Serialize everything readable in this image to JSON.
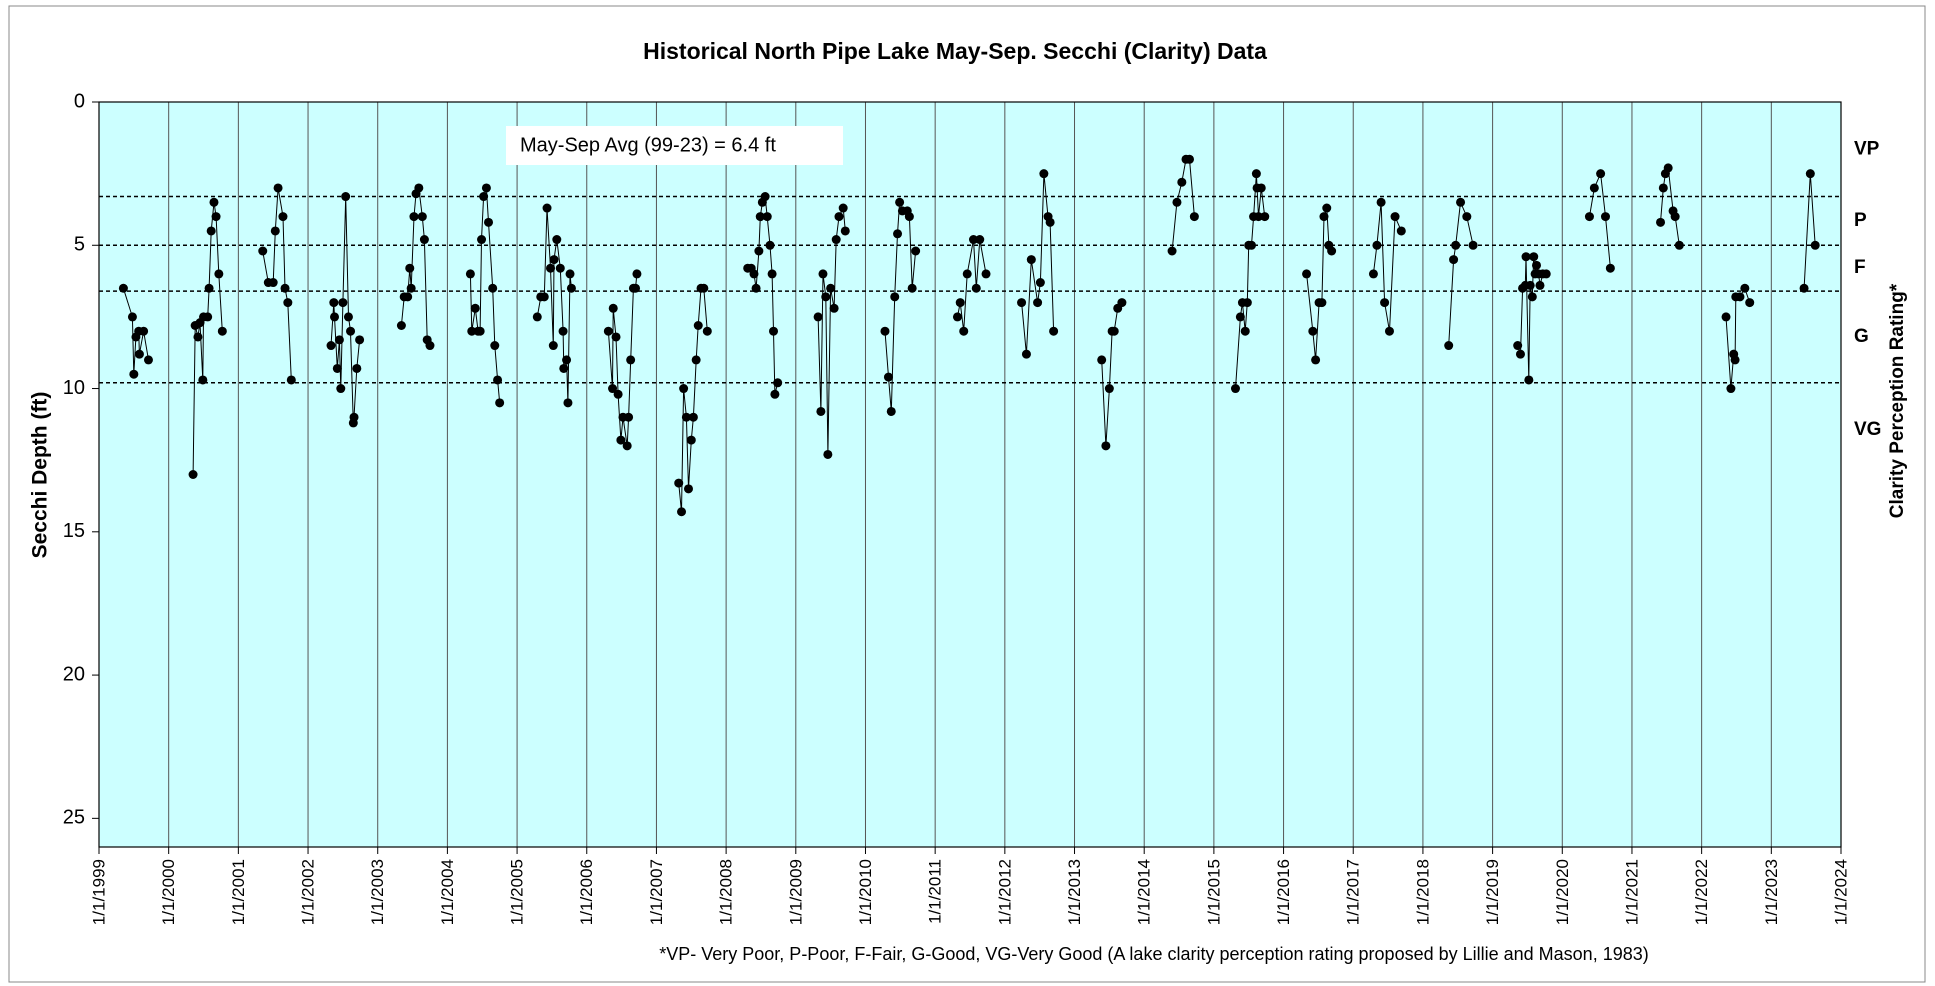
{
  "chart_data": {
    "type": "line",
    "title": "Historical North Pipe Lake May-Sep. Secchi (Clarity) Data",
    "y_label": "Secchi Depth (ft)",
    "y2_label": "Clarity  Perception  Rating*",
    "annotation": "May-Sep Avg (99-23) = 6.4 ft",
    "footnote": "*VP- Very Poor, P-Poor, F-Fair, G-Good, VG-Very Good (A lake clarity perception rating proposed by Lillie and Mason, 1983)",
    "ratings": [
      "VP",
      "P",
      "F",
      "G",
      "VG"
    ],
    "thresholds": [
      3.3,
      5,
      6.6,
      9.8
    ],
    "xlim": [
      1999,
      2024
    ],
    "xticks": [
      {
        "value": 1999,
        "label": "1/1/1999"
      },
      {
        "value": 2000,
        "label": "1/1/2000"
      },
      {
        "value": 2001,
        "label": "1/1/2001"
      },
      {
        "value": 2002,
        "label": "1/1/2002"
      },
      {
        "value": 2003,
        "label": "1/1/2003"
      },
      {
        "value": 2004,
        "label": "1/1/2004"
      },
      {
        "value": 2005,
        "label": "1/1/2005"
      },
      {
        "value": 2006,
        "label": "1/1/2006"
      },
      {
        "value": 2007,
        "label": "1/1/2007"
      },
      {
        "value": 2008,
        "label": "1/1/2008"
      },
      {
        "value": 2009,
        "label": "1/1/2009"
      },
      {
        "value": 2010,
        "label": "1/1/2010"
      },
      {
        "value": 2011,
        "label": "1/1/2011"
      },
      {
        "value": 2012,
        "label": "1/1/2012"
      },
      {
        "value": 2013,
        "label": "1/1/2013"
      },
      {
        "value": 2014,
        "label": "1/1/2014"
      },
      {
        "value": 2015,
        "label": "1/1/2015"
      },
      {
        "value": 2016,
        "label": "1/1/2016"
      },
      {
        "value": 2017,
        "label": "1/1/2017"
      },
      {
        "value": 2018,
        "label": "1/1/2018"
      },
      {
        "value": 2019,
        "label": "1/1/2019"
      },
      {
        "value": 2020,
        "label": "1/1/2020"
      },
      {
        "value": 2021,
        "label": "1/1/2021"
      },
      {
        "value": 2022,
        "label": "1/1/2022"
      },
      {
        "value": 2023,
        "label": "1/1/2023"
      },
      {
        "value": 2024,
        "label": "1/1/2024"
      }
    ],
    "ylim": [
      0,
      26
    ],
    "yticks": [
      0,
      5,
      10,
      15,
      20,
      25
    ],
    "y_inverted": true,
    "grid": true,
    "background": "#ccffff",
    "series": [
      {
        "color": "#000000",
        "x": [
          1999.35,
          1999.48,
          1999.5,
          1999.53,
          1999.57,
          1999.58,
          1999.64,
          1999.71,
          null,
          2000.35,
          2000.38,
          2000.42,
          2000.45,
          2000.49,
          2000.5,
          2000.56,
          2000.58,
          2000.61,
          2000.65,
          2000.68,
          2000.72,
          2000.77,
          null,
          2001.35,
          2001.43,
          2001.5,
          2001.53,
          2001.57,
          2001.64,
          2001.67,
          2001.71,
          2001.76,
          null,
          2002.33,
          2002.37,
          2002.38,
          2002.42,
          2002.45,
          2002.47,
          2002.5,
          2002.54,
          2002.58,
          2002.61,
          2002.65,
          2002.66,
          2002.7,
          2002.74,
          null,
          2003.34,
          2003.38,
          2003.43,
          2003.46,
          2003.48,
          2003.52,
          2003.55,
          2003.59,
          2003.64,
          2003.67,
          2003.71,
          2003.75,
          null,
          2004.33,
          2004.35,
          2004.4,
          2004.44,
          2004.47,
          2004.49,
          2004.52,
          2004.56,
          2004.59,
          2004.65,
          2004.68,
          2004.72,
          2004.75,
          null,
          2005.29,
          2005.34,
          2005.39,
          2005.43,
          2005.48,
          2005.52,
          2005.53,
          2005.57,
          2005.62,
          2005.66,
          2005.67,
          2005.71,
          2005.73,
          2005.76,
          2005.78,
          null,
          2006.31,
          2006.37,
          2006.38,
          2006.42,
          2006.45,
          2006.49,
          2006.52,
          2006.58,
          2006.6,
          2006.63,
          2006.67,
          2006.7,
          2006.72,
          null,
          2007.32,
          2007.36,
          2007.39,
          2007.43,
          2007.46,
          2007.5,
          2007.53,
          2007.57,
          2007.6,
          2007.64,
          2007.68,
          2007.73,
          null,
          2008.31,
          2008.36,
          2008.4,
          2008.43,
          2008.47,
          2008.49,
          2008.52,
          2008.56,
          2008.59,
          2008.63,
          2008.66,
          2008.68,
          2008.7,
          2008.74,
          null,
          2009.32,
          2009.36,
          2009.39,
          2009.43,
          2009.46,
          2009.5,
          2009.55,
          2009.58,
          2009.62,
          2009.68,
          2009.71,
          null,
          2010.28,
          2010.33,
          2010.37,
          2010.42,
          2010.46,
          2010.49,
          2010.53,
          2010.6,
          2010.63,
          2010.67,
          2010.72,
          null,
          2011.32,
          2011.36,
          2011.41,
          2011.46,
          2011.55,
          2011.59,
          2011.64,
          2011.73,
          null,
          2012.24,
          2012.31,
          2012.38,
          2012.47,
          2012.51,
          2012.56,
          2012.62,
          2012.65,
          2012.7,
          null,
          2013.39,
          2013.45,
          2013.5,
          2013.54,
          2013.57,
          2013.62,
          2013.68,
          null,
          2014.4,
          2014.47,
          2014.54,
          2014.6,
          2014.65,
          2014.72,
          null,
          2015.31,
          2015.38,
          2015.41,
          2015.45,
          2015.48,
          2015.5,
          2015.54,
          2015.57,
          2015.61,
          2015.62,
          2015.64,
          2015.68,
          2015.73,
          null,
          2016.33,
          2016.42,
          2016.46,
          2016.51,
          2016.55,
          2016.58,
          2016.62,
          2016.65,
          2016.69,
          null,
          2017.29,
          2017.34,
          2017.4,
          2017.45,
          2017.52,
          2017.6,
          2017.69,
          null,
          2018.37,
          2018.44,
          2018.47,
          2018.54,
          2018.63,
          2018.72,
          null,
          2019.36,
          2019.4,
          2019.43,
          2019.47,
          2019.48,
          2019.52,
          2019.54,
          2019.57,
          2019.59,
          2019.61,
          2019.63,
          2019.66,
          2019.68,
          2019.72,
          2019.77,
          null,
          2020.39,
          2020.46,
          2020.55,
          2020.62,
          2020.69,
          null,
          2021.41,
          2021.45,
          2021.48,
          2021.52,
          2021.59,
          2021.62,
          2021.68,
          null,
          2022.35,
          2022.42,
          2022.46,
          2022.48,
          2022.49,
          2022.55,
          2022.62,
          2022.69,
          null,
          2023.47,
          2023.56,
          2023.63
        ],
        "values": [
          6.5,
          7.5,
          9.5,
          8.2,
          8.0,
          8.8,
          8.0,
          9.0,
          null,
          13.0,
          7.8,
          8.2,
          7.7,
          9.7,
          7.5,
          7.5,
          6.5,
          4.5,
          3.5,
          4.0,
          6.0,
          8.0,
          null,
          5.2,
          6.3,
          6.3,
          4.5,
          3.0,
          4.0,
          6.5,
          7.0,
          9.7,
          null,
          8.5,
          7.0,
          7.5,
          9.3,
          8.3,
          10.0,
          7.0,
          3.3,
          7.5,
          8.0,
          11.2,
          11.0,
          9.3,
          8.3,
          null,
          7.8,
          6.8,
          6.8,
          5.8,
          6.5,
          4.0,
          3.2,
          3.0,
          4.0,
          4.8,
          8.3,
          8.5,
          null,
          6.0,
          8.0,
          7.2,
          8.0,
          8.0,
          4.8,
          3.3,
          3.0,
          4.2,
          6.5,
          8.5,
          9.7,
          10.5,
          null,
          7.5,
          6.8,
          6.8,
          3.7,
          5.8,
          8.5,
          5.5,
          4.8,
          5.8,
          8.0,
          9.3,
          9.0,
          10.5,
          6.0,
          6.5,
          null,
          8.0,
          10.0,
          7.2,
          8.2,
          10.2,
          11.8,
          11.0,
          12.0,
          11.0,
          9.0,
          6.5,
          6.5,
          6.0,
          null,
          13.3,
          14.3,
          10.0,
          11.0,
          13.5,
          11.8,
          11.0,
          9.0,
          7.8,
          6.5,
          6.5,
          8.0,
          null,
          5.8,
          5.8,
          6.0,
          6.5,
          5.2,
          4.0,
          3.5,
          3.3,
          4.0,
          5.0,
          6.0,
          8.0,
          10.2,
          9.8,
          null,
          7.5,
          10.8,
          6.0,
          6.8,
          12.3,
          6.5,
          7.2,
          4.8,
          4.0,
          3.7,
          4.5,
          null,
          8.0,
          9.6,
          10.8,
          6.8,
          4.6,
          3.5,
          3.8,
          3.8,
          4.0,
          6.5,
          5.2,
          null,
          7.5,
          7.0,
          8.0,
          6.0,
          4.8,
          6.5,
          4.8,
          6.0,
          null,
          7.0,
          8.8,
          5.5,
          7.0,
          6.3,
          2.5,
          4.0,
          4.2,
          8.0,
          null,
          9.0,
          12.0,
          10.0,
          8.0,
          8.0,
          7.2,
          7.0,
          null,
          5.2,
          3.5,
          2.8,
          2.0,
          2.0,
          4.0,
          null,
          10.0,
          7.5,
          7.0,
          8.0,
          7.0,
          5.0,
          5.0,
          4.0,
          2.5,
          3.0,
          4.0,
          3.0,
          4.0,
          null,
          6.0,
          8.0,
          9.0,
          7.0,
          7.0,
          4.0,
          3.7,
          5.0,
          5.2,
          null,
          6.0,
          5.0,
          3.5,
          7.0,
          8.0,
          4.0,
          4.5,
          null,
          8.5,
          5.5,
          5.0,
          3.5,
          4.0,
          5.0,
          null,
          8.5,
          8.8,
          6.5,
          6.4,
          5.4,
          9.7,
          6.4,
          6.8,
          5.4,
          6.0,
          5.7,
          6.0,
          6.4,
          6.0,
          6.0,
          null,
          4.0,
          3.0,
          2.5,
          4.0,
          5.8,
          null,
          4.2,
          3.0,
          2.5,
          2.3,
          3.8,
          4.0,
          5.0,
          null,
          7.5,
          10.0,
          8.8,
          9.0,
          6.8,
          6.8,
          6.5,
          7.0,
          null,
          6.5,
          2.5,
          5.0
        ]
      }
    ]
  }
}
